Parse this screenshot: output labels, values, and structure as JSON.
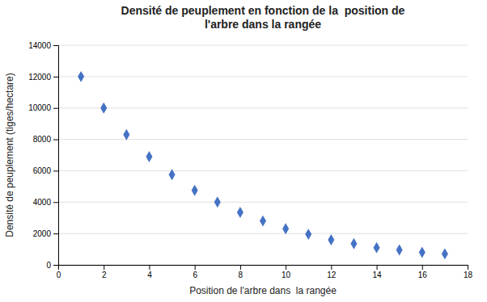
{
  "chart_data": {
    "type": "scatter",
    "title": [
      "Densité de peuplement en fonction de la  position de",
      "l'arbre dans la rangée"
    ],
    "x_label": "Position de l'arbre dans  la rangée",
    "y_label": "Densité de peuplement (tiges/hectare)",
    "x": [
      1,
      2,
      3,
      4,
      5,
      6,
      7,
      8,
      9,
      10,
      11,
      12,
      13,
      14,
      15,
      16,
      17
    ],
    "values": [
      12000,
      10000,
      8300,
      6900,
      5750,
      4750,
      4000,
      3350,
      2800,
      2300,
      1950,
      1600,
      1350,
      1100,
      950,
      800,
      700
    ],
    "color": "#4472C4",
    "marker": "diamond",
    "xlim": [
      0,
      18
    ],
    "ylim": [
      0,
      14000
    ],
    "xticks": [
      0,
      2,
      4,
      6,
      8,
      10,
      12,
      14,
      16,
      18
    ],
    "yticks": [
      0,
      2000,
      4000,
      6000,
      8000,
      10000,
      12000,
      14000
    ],
    "grid": "y"
  }
}
